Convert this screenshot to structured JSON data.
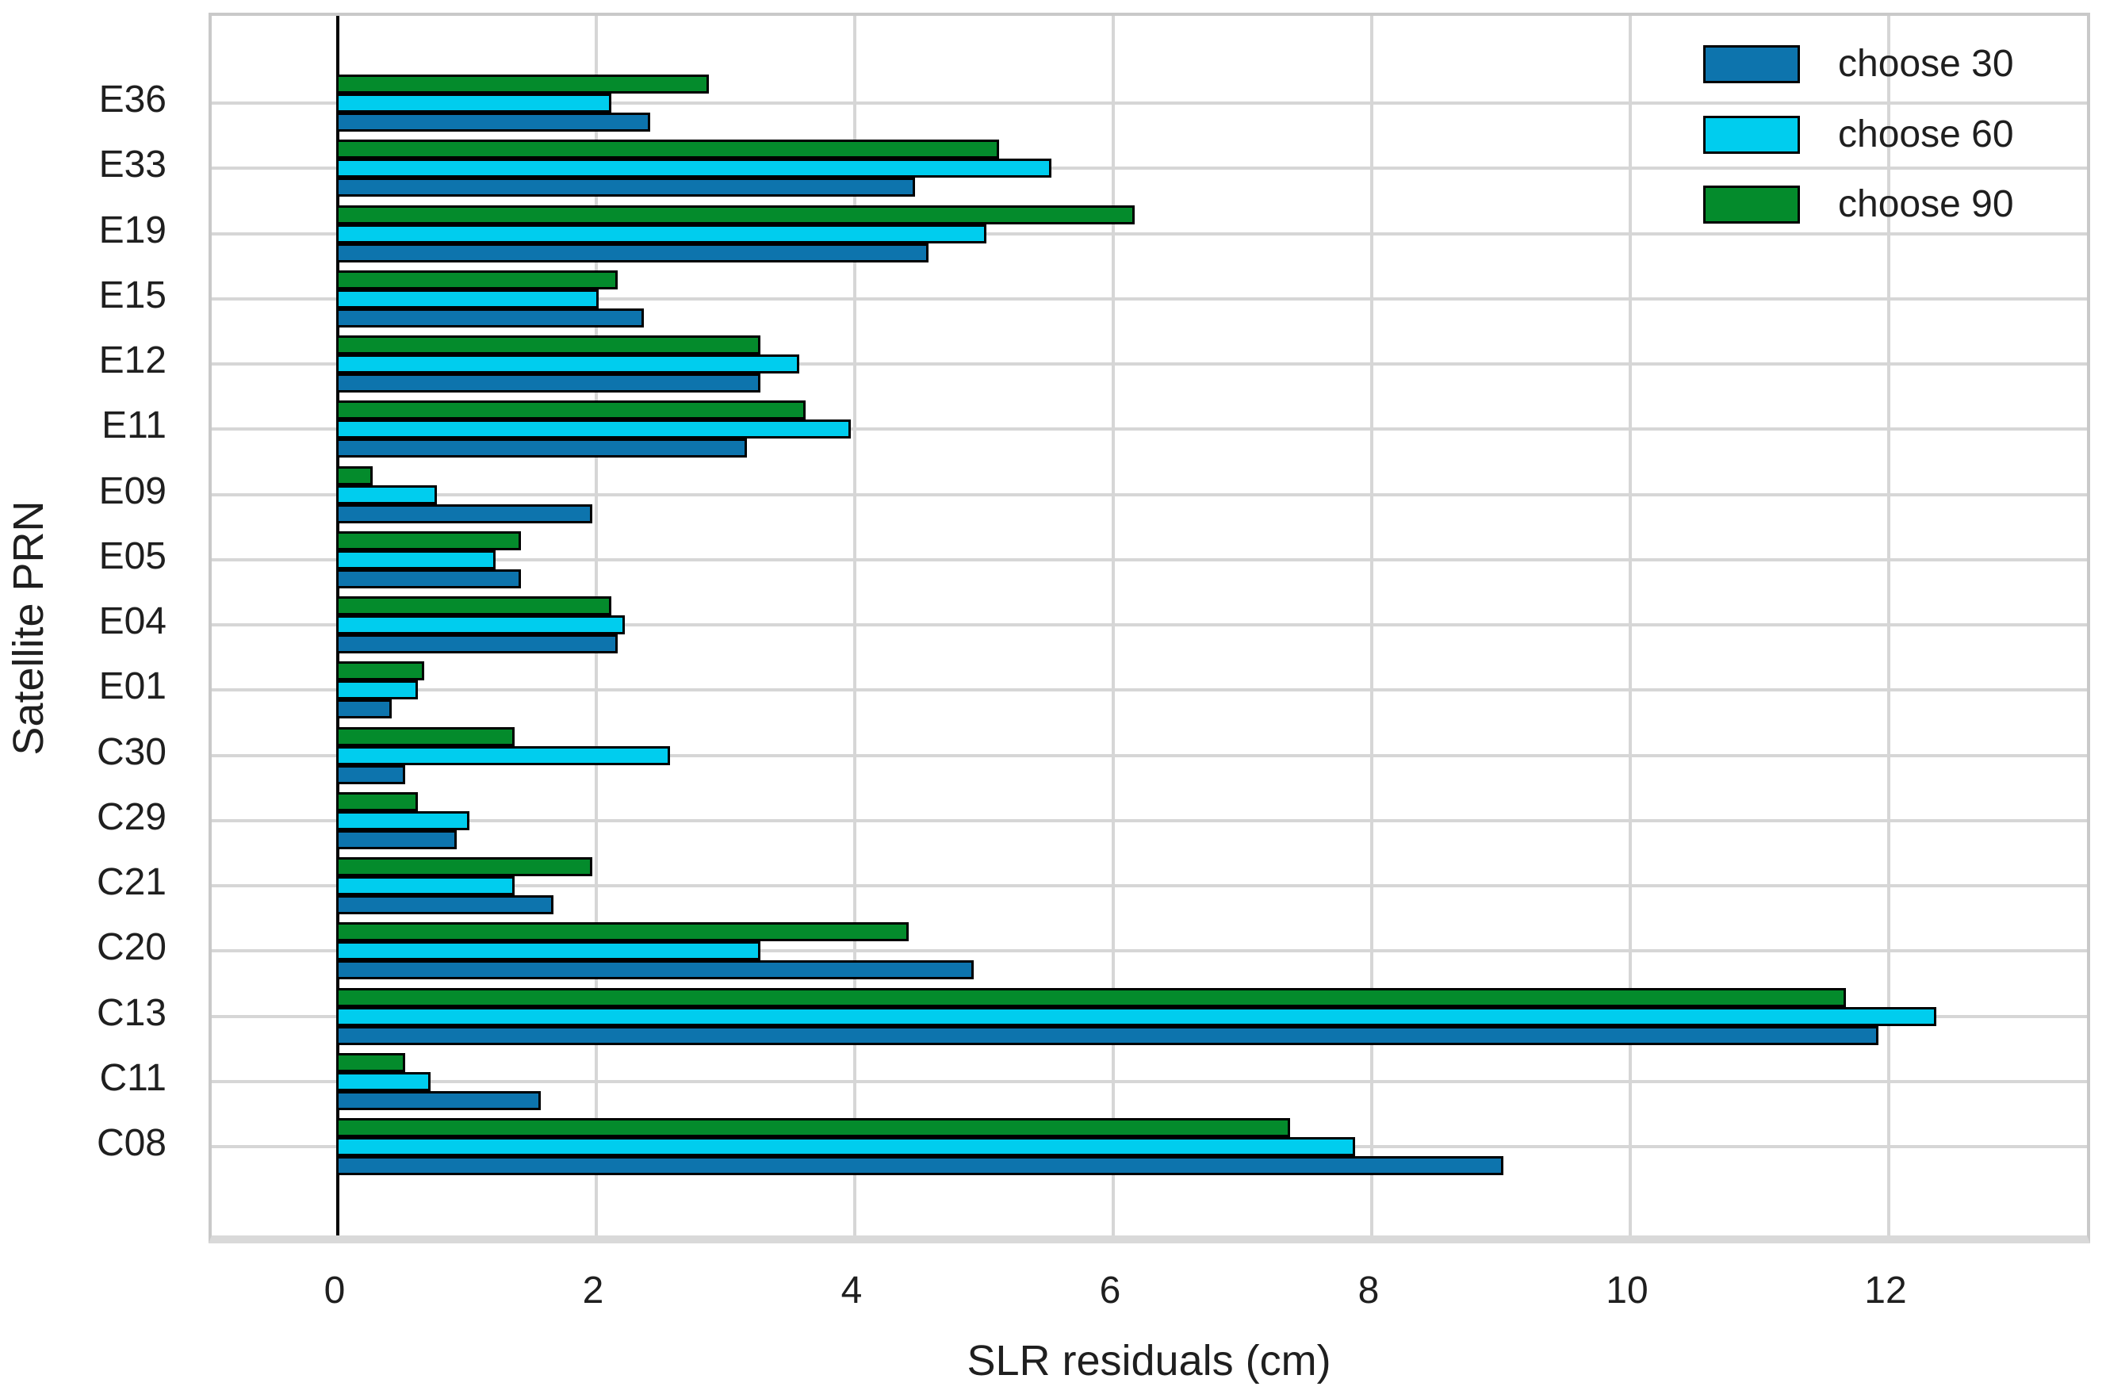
{
  "chart_data": {
    "type": "bar",
    "orientation": "horizontal",
    "title": "",
    "xlabel": "SLR residuals (cm)",
    "ylabel": "Satellite PRN",
    "categories": [
      "E36",
      "E33",
      "E19",
      "E15",
      "E12",
      "E11",
      "E09",
      "E05",
      "E04",
      "E01",
      "C30",
      "C29",
      "C21",
      "C20",
      "C13",
      "C11",
      "C08"
    ],
    "series": [
      {
        "name": "choose 30",
        "color": "#0d74ad",
        "values": [
          2.4,
          4.45,
          4.55,
          2.35,
          3.25,
          3.15,
          1.95,
          1.4,
          2.15,
          0.4,
          0.5,
          0.9,
          1.65,
          4.9,
          11.9,
          1.55,
          9.0
        ]
      },
      {
        "name": "choose 60",
        "color": "#00cdee",
        "values": [
          2.1,
          5.5,
          5.0,
          2.0,
          3.55,
          3.95,
          0.75,
          1.2,
          2.2,
          0.6,
          2.55,
          1.0,
          1.35,
          3.25,
          12.35,
          0.7,
          7.85
        ]
      },
      {
        "name": "choose 90",
        "color": "#048b2c",
        "values": [
          2.85,
          5.1,
          6.15,
          2.15,
          3.25,
          3.6,
          0.25,
          1.4,
          2.1,
          0.65,
          1.35,
          0.6,
          1.95,
          4.4,
          11.65,
          0.5,
          7.35
        ]
      }
    ],
    "bar_stack_order_top_to_bottom": [
      "choose 90",
      "choose 60",
      "choose 30"
    ],
    "xticks": [
      0,
      2,
      4,
      6,
      8,
      10,
      12
    ],
    "xlim": [
      -0.98,
      13.58
    ],
    "grid": "on",
    "legend_position": "upper right",
    "bar_outline_color": "#000000",
    "grid_color": "#d6d6d6",
    "zero_axis_color": "#000000",
    "text_color": "#1f1f1f"
  }
}
